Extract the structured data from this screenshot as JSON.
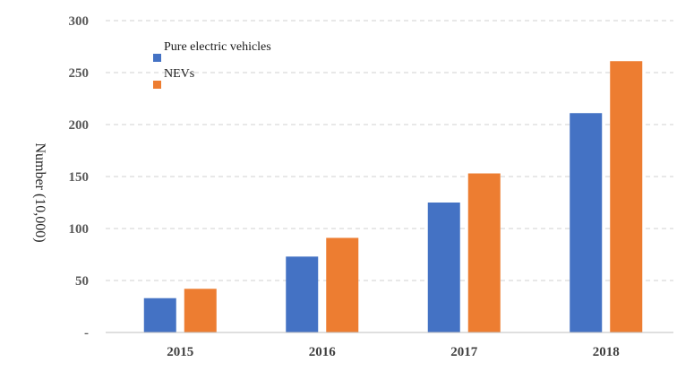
{
  "chart_data": {
    "type": "bar",
    "categories": [
      "2015",
      "2016",
      "2017",
      "2018"
    ],
    "series": [
      {
        "name": "Pure electric vehicles",
        "color": "#4472C4",
        "values": [
          33,
          73,
          125,
          211
        ]
      },
      {
        "name": "NEVs",
        "color": "#ED7D31",
        "values": [
          42,
          91,
          153,
          261
        ]
      }
    ],
    "ylabel": "Number (10,000)",
    "ylim": [
      0,
      300
    ],
    "yticks": [
      {
        "value": 0,
        "label": "-"
      },
      {
        "value": 50,
        "label": "50"
      },
      {
        "value": 100,
        "label": "100"
      },
      {
        "value": 150,
        "label": "150"
      },
      {
        "value": 200,
        "label": "200"
      },
      {
        "value": 250,
        "label": "250"
      },
      {
        "value": 300,
        "label": "300"
      }
    ],
    "grid": true,
    "legend_position": "top-left"
  }
}
